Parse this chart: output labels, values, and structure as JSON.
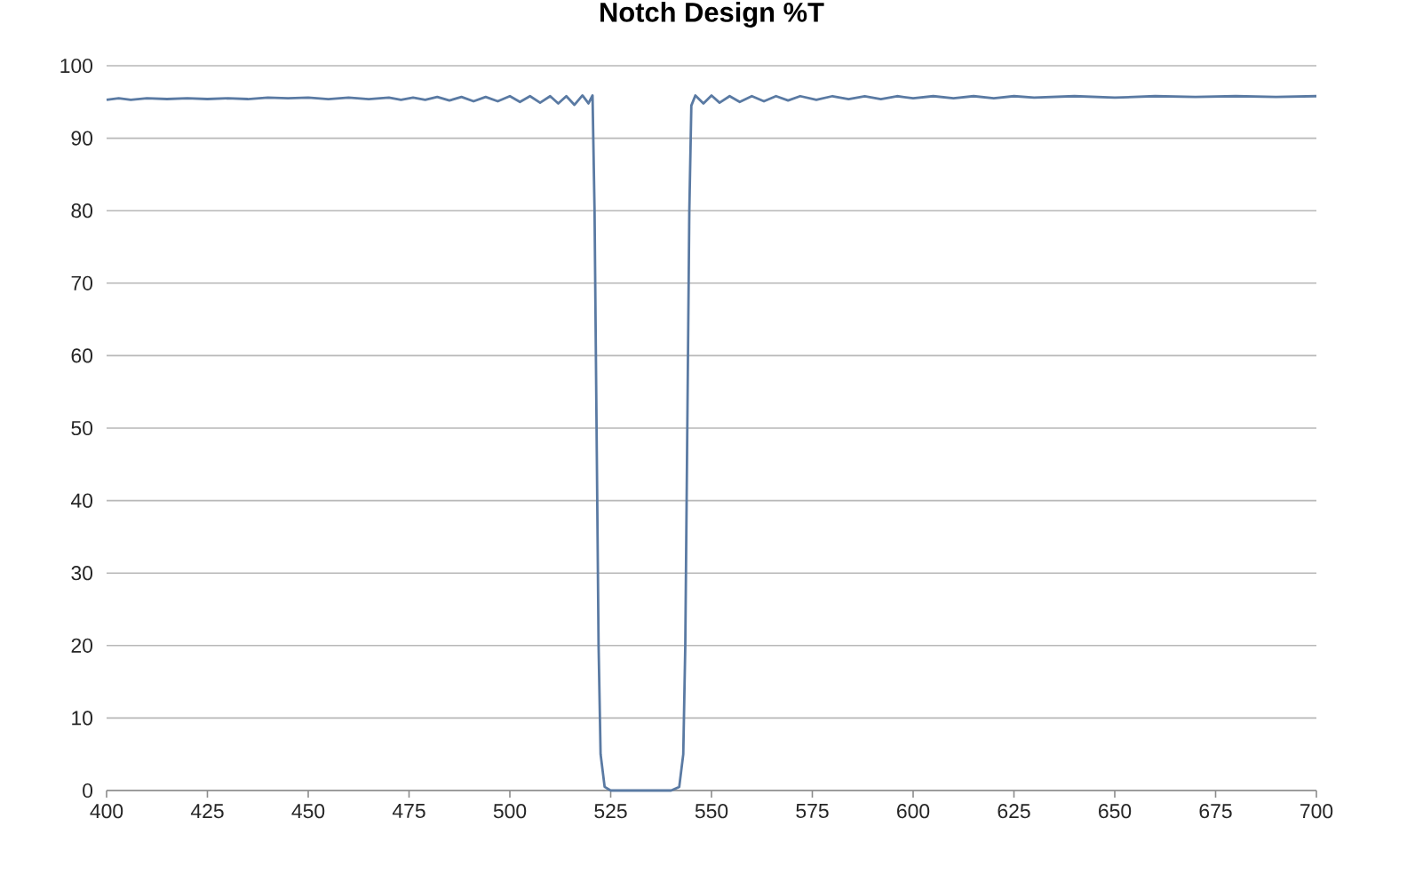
{
  "chart_data": {
    "type": "line",
    "title": "Notch Design %T",
    "x": [
      400,
      403,
      406,
      410,
      415,
      420,
      425,
      430,
      435,
      440,
      445,
      450,
      455,
      460,
      465,
      470,
      473,
      476,
      479,
      482,
      485,
      488,
      491,
      494,
      497,
      500,
      502.5,
      505,
      507.5,
      510,
      512,
      514,
      516,
      518,
      519.5,
      520.5,
      521,
      521.5,
      522,
      522.5,
      523.5,
      525,
      540,
      542,
      543,
      543.5,
      544,
      544.5,
      545,
      546,
      548,
      550,
      552,
      554.5,
      557,
      560,
      563,
      566,
      569,
      572,
      576,
      580,
      584,
      588,
      592,
      596,
      600,
      605,
      610,
      615,
      620,
      625,
      630,
      640,
      650,
      660,
      670,
      680,
      690,
      700
    ],
    "series": [
      {
        "color": "#5a7aa3",
        "values": [
          95.3,
          95.5,
          95.3,
          95.5,
          95.4,
          95.5,
          95.4,
          95.5,
          95.4,
          95.6,
          95.5,
          95.6,
          95.4,
          95.6,
          95.4,
          95.6,
          95.3,
          95.6,
          95.3,
          95.7,
          95.2,
          95.7,
          95.1,
          95.7,
          95.1,
          95.8,
          95.0,
          95.8,
          94.9,
          95.8,
          94.8,
          95.8,
          94.6,
          95.9,
          94.8,
          95.9,
          80,
          50,
          20,
          5,
          0.5,
          0,
          0,
          0.5,
          5,
          20,
          50,
          80,
          94.5,
          95.9,
          94.8,
          95.9,
          94.9,
          95.8,
          95.0,
          95.8,
          95.1,
          95.8,
          95.2,
          95.8,
          95.3,
          95.8,
          95.4,
          95.8,
          95.4,
          95.8,
          95.5,
          95.8,
          95.5,
          95.8,
          95.5,
          95.8,
          95.6,
          95.8,
          95.6,
          95.8,
          95.7,
          95.8,
          95.7,
          95.8
        ]
      }
    ],
    "xlim": [
      400,
      700
    ],
    "ylim": [
      0,
      100
    ],
    "xticks": [
      400,
      425,
      450,
      475,
      500,
      525,
      550,
      575,
      600,
      625,
      650,
      675,
      700
    ],
    "yticks": [
      0,
      10,
      20,
      30,
      40,
      50,
      60,
      70,
      80,
      90,
      100
    ],
    "grid": "y",
    "marker": "none",
    "line_style": "solid"
  }
}
